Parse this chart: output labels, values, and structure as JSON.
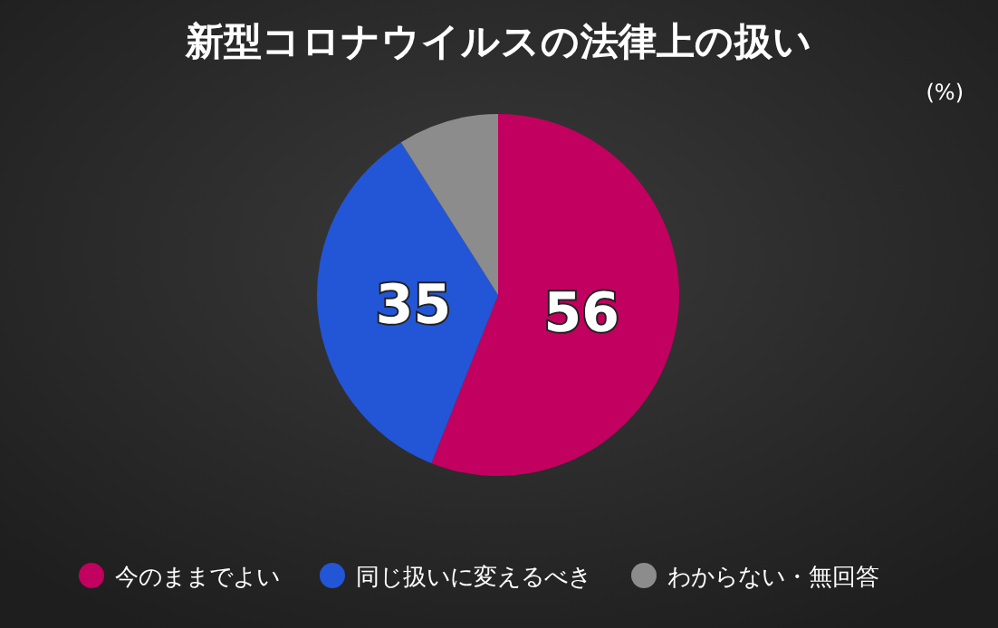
{
  "chart_data": {
    "type": "pie",
    "title": "新型コロナウイルスの法律上の扱い",
    "annotations": [
      "(%)"
    ],
    "categories": [
      "今のままでよい",
      "同じ扱いに変えるべき",
      "わからない・無回答"
    ],
    "values": [
      56,
      35,
      9
    ],
    "colors": [
      "#c2005f",
      "#2356d6",
      "#8c8c8c"
    ],
    "value_labels": [
      "56",
      "35",
      null
    ],
    "legend": "bottom"
  }
}
